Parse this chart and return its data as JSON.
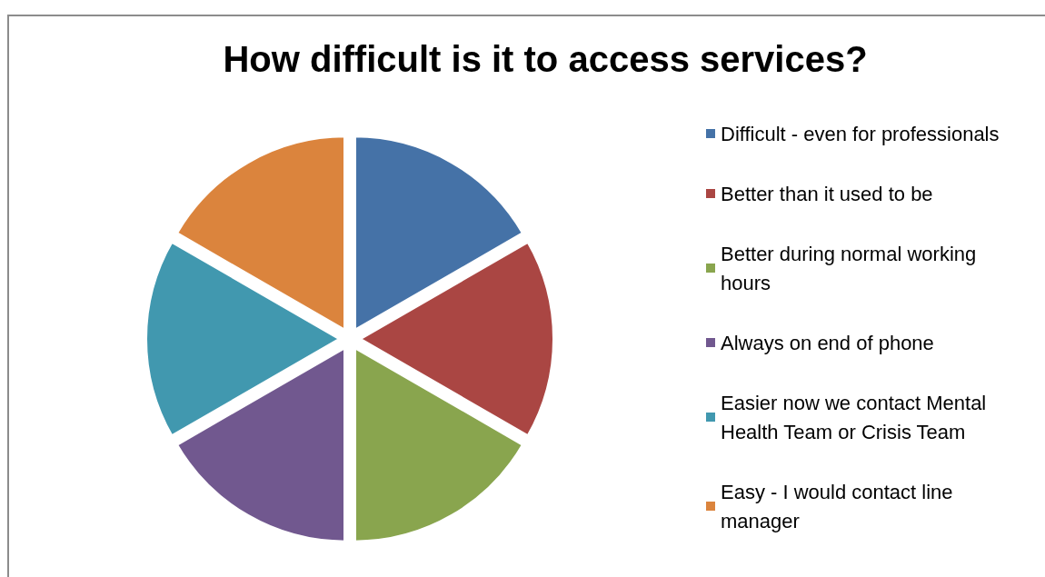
{
  "chart_data": {
    "type": "pie",
    "title": "How difficult is it to access services?",
    "categories": [
      "Difficult - even for professionals",
      "Better than it used to be",
      "Better during normal working hours",
      "Always on end of phone",
      "Easier now we contact Mental Health Team or Crisis Team",
      "Easy - I would contact line manager"
    ],
    "values": [
      16.67,
      16.67,
      16.67,
      16.67,
      16.67,
      16.67
    ],
    "colors": [
      "#4572a7",
      "#aa4643",
      "#89a54e",
      "#71588f",
      "#4198af",
      "#db843d"
    ],
    "legend": "right"
  }
}
